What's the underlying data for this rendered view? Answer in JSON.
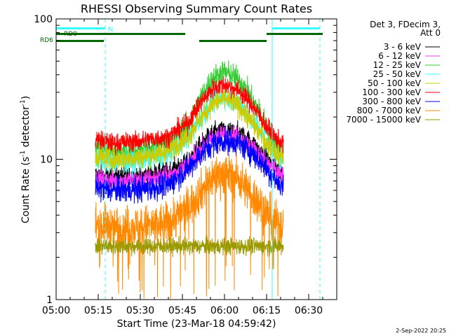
{
  "chart_data": {
    "type": "line",
    "title": "RHESSI Observing Summary Count Rates",
    "xlabel": "Start Time (23-Mar-18 04:59:42)",
    "ylabel_main": "Count Rate (s",
    "ylabel_sup1": "-1",
    "ylabel_mid": " detector",
    "ylabel_sup2": "-1",
    "ylabel_end": ")",
    "yscale": "log",
    "xlim_minutes": [
      0,
      100
    ],
    "ylim": [
      1,
      100
    ],
    "x_ticks": [
      {
        "minute": 0,
        "label": "05:00"
      },
      {
        "minute": 15,
        "label": "05:15"
      },
      {
        "minute": 30,
        "label": "05:30"
      },
      {
        "minute": 45,
        "label": "05:45"
      },
      {
        "minute": 60,
        "label": "06:00"
      },
      {
        "minute": 75,
        "label": "06:15"
      },
      {
        "minute": 90,
        "label": "06:30"
      }
    ],
    "y_ticks": [
      {
        "value": 1,
        "label": "1"
      },
      {
        "value": 10,
        "label": "10"
      },
      {
        "value": 100,
        "label": "100"
      }
    ],
    "data_start_minute": 14,
    "data_end_minute": 81,
    "legend_header": [
      "Det 3, FDecim 3,",
      "Att 0"
    ],
    "series": [
      {
        "name": "3 - 6 keV",
        "color": "#000000",
        "noise": 0.07,
        "profile": [
          [
            14,
            7.8
          ],
          [
            20,
            7.5
          ],
          [
            30,
            7.6
          ],
          [
            40,
            8.2
          ],
          [
            47,
            9.5
          ],
          [
            52,
            13
          ],
          [
            56,
            15.5
          ],
          [
            60,
            16
          ],
          [
            65,
            15.5
          ],
          [
            70,
            13
          ],
          [
            75,
            10
          ],
          [
            79,
            8.5
          ],
          [
            81,
            8
          ]
        ]
      },
      {
        "name": "6 - 12 keV",
        "color": "#ff33ff",
        "noise": 0.07,
        "profile": [
          [
            14,
            7.2
          ],
          [
            20,
            7
          ],
          [
            30,
            7.1
          ],
          [
            40,
            7.6
          ],
          [
            47,
            9
          ],
          [
            52,
            12
          ],
          [
            56,
            14.5
          ],
          [
            60,
            15
          ],
          [
            65,
            14.5
          ],
          [
            70,
            12
          ],
          [
            75,
            9.5
          ],
          [
            79,
            8
          ],
          [
            81,
            7.5
          ]
        ]
      },
      {
        "name": "12 - 25 keV",
        "color": "#33cc33",
        "noise": 0.09,
        "profile": [
          [
            14,
            12
          ],
          [
            20,
            11
          ],
          [
            30,
            11.5
          ],
          [
            40,
            13
          ],
          [
            47,
            17
          ],
          [
            52,
            28
          ],
          [
            56,
            38
          ],
          [
            60,
            42
          ],
          [
            65,
            37
          ],
          [
            70,
            26
          ],
          [
            75,
            17
          ],
          [
            79,
            12
          ],
          [
            81,
            11
          ]
        ]
      },
      {
        "name": "25 - 50 keV",
        "color": "#33ffff",
        "noise": 0.08,
        "profile": [
          [
            14,
            10
          ],
          [
            20,
            9.5
          ],
          [
            30,
            9.8
          ],
          [
            40,
            11
          ],
          [
            47,
            14
          ],
          [
            52,
            20
          ],
          [
            56,
            26
          ],
          [
            60,
            28
          ],
          [
            65,
            25
          ],
          [
            70,
            19
          ],
          [
            75,
            13
          ],
          [
            79,
            10.5
          ],
          [
            81,
            10
          ]
        ]
      },
      {
        "name": "50 - 100 keV",
        "color": "#cccc00",
        "noise": 0.08,
        "profile": [
          [
            14,
            10.5
          ],
          [
            20,
            10
          ],
          [
            30,
            10.3
          ],
          [
            40,
            11.5
          ],
          [
            47,
            14.5
          ],
          [
            52,
            20
          ],
          [
            56,
            25
          ],
          [
            60,
            27
          ],
          [
            65,
            24
          ],
          [
            70,
            18
          ],
          [
            75,
            13
          ],
          [
            79,
            11
          ],
          [
            81,
            10.5
          ]
        ]
      },
      {
        "name": "100 - 300 keV",
        "color": "#ff0000",
        "noise": 0.07,
        "profile": [
          [
            14,
            14
          ],
          [
            20,
            13
          ],
          [
            30,
            13.5
          ],
          [
            40,
            14.5
          ],
          [
            47,
            18
          ],
          [
            52,
            26
          ],
          [
            56,
            32
          ],
          [
            60,
            34
          ],
          [
            65,
            31
          ],
          [
            70,
            24
          ],
          [
            75,
            17
          ],
          [
            79,
            13.5
          ],
          [
            81,
            13
          ]
        ]
      },
      {
        "name": "300 - 800 keV",
        "color": "#0000ff",
        "noise": 0.09,
        "profile": [
          [
            14,
            6.2
          ],
          [
            20,
            6
          ],
          [
            30,
            6.1
          ],
          [
            40,
            6.5
          ],
          [
            47,
            8.5
          ],
          [
            52,
            11
          ],
          [
            56,
            13
          ],
          [
            60,
            13.5
          ],
          [
            65,
            13
          ],
          [
            70,
            11
          ],
          [
            75,
            8.5
          ],
          [
            79,
            6.8
          ],
          [
            81,
            6.4
          ]
        ]
      },
      {
        "name": "800 - 7000 keV",
        "color": "#ff8800",
        "noise": 0.15,
        "profile": [
          [
            14,
            3.4
          ],
          [
            20,
            3.3
          ],
          [
            30,
            3.3
          ],
          [
            40,
            3.5
          ],
          [
            47,
            4.5
          ],
          [
            52,
            6
          ],
          [
            56,
            7.5
          ],
          [
            60,
            8
          ],
          [
            65,
            7.2
          ],
          [
            70,
            5.5
          ],
          [
            75,
            4.2
          ],
          [
            79,
            3.5
          ],
          [
            81,
            3.3
          ]
        ]
      },
      {
        "name": "7000 - 15000 keV",
        "color": "#999900",
        "noise": 0.06,
        "profile": [
          [
            14,
            2.4
          ],
          [
            81,
            2.4
          ]
        ]
      }
    ],
    "flag_bars": [
      {
        "label": "RD0",
        "color": "#006600",
        "row": 1,
        "segments": [
          [
            0,
            17
          ],
          [
            17,
            46
          ],
          [
            75,
            95
          ]
        ]
      },
      {
        "label": "RD6",
        "color": "#006600",
        "row": 2,
        "segments": [
          [
            0,
            17
          ],
          [
            51,
            75
          ]
        ]
      }
    ],
    "att_flag": {
      "label": "N",
      "color": "#33ffff",
      "segments": [
        [
          0,
          17.5
        ],
        [
          77,
          94
        ]
      ]
    },
    "vlines": [
      {
        "minute": 17.5,
        "color": "#33ffff",
        "dashed": true
      },
      {
        "minute": 77,
        "color": "#33ffff",
        "dashed": false
      },
      {
        "minute": 94,
        "color": "#33ffff",
        "dashed": true
      }
    ]
  },
  "footer": {
    "date": "2-Sep-2022 20:25"
  }
}
